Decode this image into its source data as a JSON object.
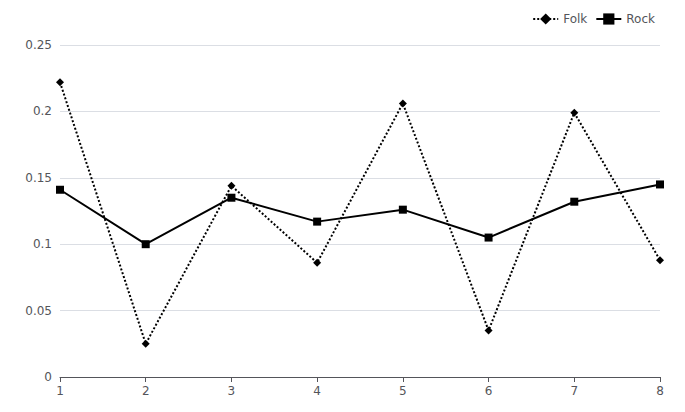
{
  "chart_data": {
    "type": "line",
    "x": [
      1,
      2,
      3,
      4,
      5,
      6,
      7,
      8
    ],
    "series": [
      {
        "name": "Folk",
        "color": "#000000",
        "line_style": "dotted",
        "marker": "diamond",
        "values": [
          0.222,
          0.025,
          0.144,
          0.086,
          0.206,
          0.035,
          0.199,
          0.088
        ]
      },
      {
        "name": "Rock",
        "color": "#000000",
        "line_style": "solid",
        "marker": "square",
        "values": [
          0.141,
          0.1,
          0.135,
          0.117,
          0.126,
          0.105,
          0.132,
          0.145
        ]
      }
    ],
    "xlim": [
      1,
      8
    ],
    "xticks": [
      1,
      2,
      3,
      4,
      5,
      6,
      7,
      8
    ],
    "ylim": [
      0,
      0.25
    ],
    "yticks": [
      0,
      0.05,
      0.1,
      0.15,
      0.2,
      0.25
    ],
    "grid": true,
    "legend": "upper right"
  }
}
